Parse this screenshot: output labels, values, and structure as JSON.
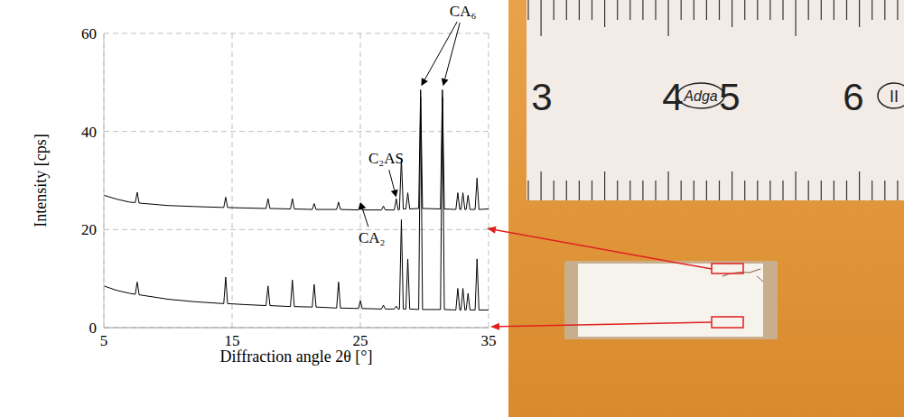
{
  "chart_data": {
    "type": "line",
    "x_label": "Diffraction angle 2θ [°]",
    "y_label": "Intensity [cps]",
    "x": [
      5,
      6,
      7,
      7.45,
      7.6,
      7.75,
      10,
      12,
      14.35,
      14.5,
      14.65,
      16,
      17.65,
      17.8,
      17.95,
      19.55,
      19.7,
      19.85,
      21.25,
      21.4,
      21.55,
      23.15,
      23.3,
      23.45,
      24.85,
      25.0,
      25.15,
      26.65,
      26.8,
      26.95,
      27.65,
      27.8,
      27.95,
      28.05,
      28.2,
      28.35,
      28.55,
      28.7,
      28.85,
      29.55,
      29.7,
      29.85,
      31.25,
      31.4,
      31.55,
      32.45,
      32.6,
      32.75,
      32.85,
      33.0,
      33.15,
      33.25,
      33.4,
      33.55,
      33.95,
      34.1,
      34.25,
      35
    ],
    "series": [
      {
        "color": "#000000",
        "values": [
          27,
          26.2,
          25.6,
          25.5,
          27.6,
          25.4,
          24.9,
          24.7,
          24.5,
          26.6,
          24.5,
          24.4,
          24.3,
          26.3,
          24.3,
          24.2,
          26.3,
          24.2,
          24.1,
          25.3,
          24.1,
          24.1,
          25.6,
          24.1,
          24.0,
          25.3,
          24.0,
          24.0,
          24.8,
          24.0,
          24.0,
          26.3,
          24.0,
          24.1,
          34.5,
          24.2,
          24.2,
          27.5,
          24.2,
          24.3,
          48.5,
          24.3,
          24.2,
          48.5,
          24.2,
          24.1,
          27.5,
          24.1,
          24.1,
          27.5,
          24.1,
          24.1,
          27,
          24.1,
          24.1,
          30.5,
          24.1,
          24.2
        ]
      },
      {
        "color": "#000000",
        "values": [
          8.5,
          7.6,
          7.0,
          6.8,
          9.3,
          6.7,
          5.8,
          5.3,
          4.9,
          10.3,
          4.9,
          4.7,
          4.5,
          8.5,
          4.5,
          4.3,
          9.7,
          4.3,
          4.2,
          8.8,
          4.2,
          4.0,
          9.3,
          4.0,
          3.9,
          5.5,
          3.9,
          3.8,
          4.6,
          3.8,
          3.8,
          4.4,
          3.8,
          3.8,
          22,
          3.8,
          3.8,
          14,
          3.8,
          3.7,
          47,
          3.7,
          3.7,
          47,
          3.7,
          3.6,
          8,
          3.6,
          3.6,
          8,
          3.6,
          3.6,
          7,
          3.6,
          3.6,
          14,
          3.6,
          3.6
        ]
      }
    ],
    "xlim": [
      5,
      35
    ],
    "xticks": [
      5,
      15,
      25,
      35
    ],
    "ylim": [
      0,
      60
    ],
    "yticks": [
      0,
      20,
      40,
      60
    ],
    "grid": true,
    "annotations": [
      {
        "text": "CA₂",
        "xy": [
          [
            25.0,
            25.6
          ]
        ],
        "xytext": [
          25.9,
          18.3
        ]
      },
      {
        "text": "C₂AS",
        "xy": [
          [
            27.8,
            26.6
          ]
        ],
        "xytext": [
          27.0,
          34.5
        ]
      },
      {
        "text": "CA₆",
        "xy": [
          [
            29.75,
            49.3
          ],
          [
            31.45,
            49.3
          ]
        ],
        "xytext": [
          33.0,
          64.5
        ]
      }
    ]
  },
  "photo": {
    "ruler_labels": [
      "3",
      "4",
      "5",
      "6"
    ],
    "ruler_brand": "Adga",
    "ruler_mark": "II"
  }
}
